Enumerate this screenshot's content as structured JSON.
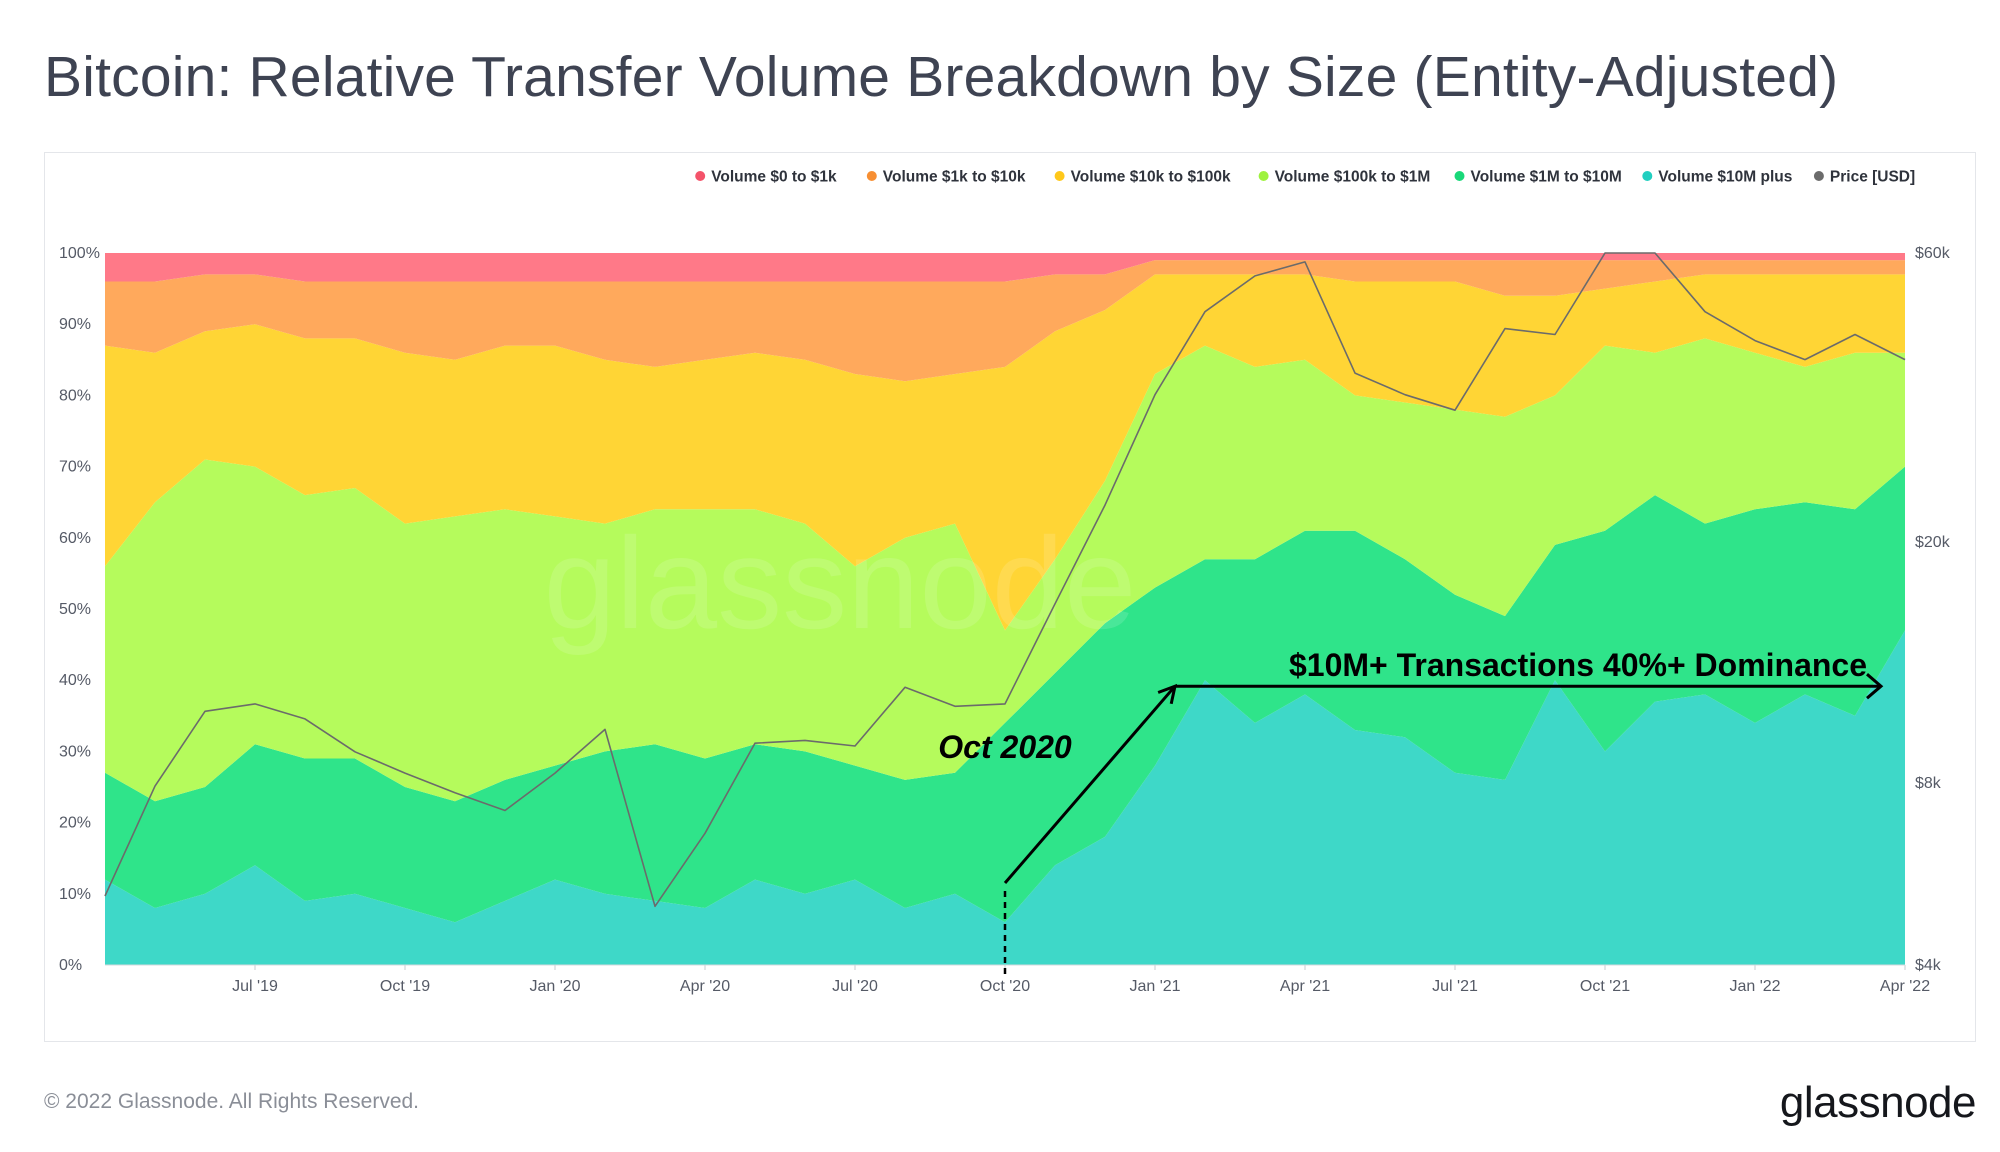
{
  "header": {
    "title": "Bitcoin: Relative Transfer Volume Breakdown by Size (Entity-Adjusted)"
  },
  "footer": {
    "copyright": "© 2022 Glassnode. All Rights Reserved.",
    "brand": "glassnode"
  },
  "watermark": "glassnode",
  "chart_data": {
    "type": "area",
    "stacked": true,
    "normalized": true,
    "title": "Bitcoin: Relative Transfer Volume Breakdown by Size (Entity-Adjusted)",
    "x_ticks": [
      "Jul '19",
      "Oct '19",
      "Jan '20",
      "Apr '20",
      "Jul '20",
      "Oct '20",
      "Jan '21",
      "Apr '21",
      "Jul '21",
      "Oct '21",
      "Jan '22",
      "Apr '22"
    ],
    "y_left": {
      "ticks": [
        "0%",
        "10%",
        "20%",
        "30%",
        "40%",
        "50%",
        "60%",
        "70%",
        "80%",
        "90%",
        "100%"
      ],
      "range": [
        0,
        100
      ]
    },
    "y_right": {
      "ticks": [
        {
          "value": 4000,
          "label": "$4k"
        },
        {
          "value": 8000,
          "label": "$8k"
        },
        {
          "value": 20000,
          "label": "$20k"
        },
        {
          "value": 60000,
          "label": "$60k"
        }
      ],
      "scale": "log",
      "range": [
        4000,
        60000
      ]
    },
    "legend_position": "top-right",
    "dates": [
      "Apr '19",
      "May '19",
      "Jun '19",
      "Jul '19",
      "Aug '19",
      "Sep '19",
      "Oct '19",
      "Nov '19",
      "Dec '19",
      "Jan '20",
      "Feb '20",
      "Mar '20",
      "Apr '20",
      "May '20",
      "Jun '20",
      "Jul '20",
      "Aug '20",
      "Sep '20",
      "Oct '20",
      "Nov '20",
      "Dec '20",
      "Jan '21",
      "Feb '21",
      "Mar '21",
      "Apr '21",
      "May '21",
      "Jun '21",
      "Jul '21",
      "Aug '21",
      "Sep '21",
      "Oct '21",
      "Nov '21",
      "Dec '21",
      "Jan '22",
      "Feb '22",
      "Mar '22",
      "Apr '22"
    ],
    "series": [
      {
        "name": "Volume $10M plus",
        "color": "#3ed8c8",
        "values": [
          12,
          8,
          10,
          14,
          9,
          10,
          8,
          6,
          9,
          12,
          10,
          9,
          8,
          12,
          10,
          12,
          8,
          10,
          6,
          14,
          18,
          28,
          40,
          34,
          38,
          33,
          32,
          27,
          26,
          40,
          30,
          37,
          38,
          34,
          38,
          35,
          47
        ]
      },
      {
        "name": "Volume $1M to $10M",
        "color": "#2fe48a",
        "values": [
          15,
          15,
          15,
          17,
          20,
          19,
          17,
          17,
          17,
          16,
          20,
          22,
          21,
          19,
          20,
          16,
          18,
          17,
          28,
          27,
          30,
          25,
          17,
          23,
          23,
          28,
          25,
          25,
          23,
          19,
          31,
          29,
          24,
          30,
          27,
          29,
          23
        ]
      },
      {
        "name": "Volume $100k to $1M",
        "color": "#b5fb5c",
        "values": [
          29,
          42,
          46,
          39,
          37,
          38,
          37,
          40,
          38,
          35,
          32,
          33,
          35,
          33,
          32,
          28,
          34,
          35,
          13,
          16,
          20,
          30,
          30,
          27,
          24,
          19,
          22,
          26,
          28,
          21,
          26,
          20,
          26,
          22,
          19,
          22,
          16
        ]
      },
      {
        "name": "Volume $10k to $100k",
        "color": "#ffd535",
        "values": [
          31,
          21,
          18,
          20,
          22,
          21,
          24,
          22,
          23,
          24,
          23,
          20,
          21,
          22,
          23,
          27,
          22,
          21,
          37,
          32,
          24,
          14,
          10,
          13,
          12,
          16,
          17,
          18,
          17,
          14,
          8,
          10,
          9,
          11,
          13,
          11,
          11
        ]
      },
      {
        "name": "Volume $1k to $10k",
        "color": "#ffa95c",
        "values": [
          9,
          10,
          8,
          7,
          8,
          8,
          10,
          11,
          9,
          9,
          11,
          12,
          11,
          10,
          11,
          13,
          14,
          13,
          12,
          8,
          5,
          2,
          2,
          2,
          2,
          3,
          3,
          3,
          5,
          5,
          4,
          3,
          2,
          2,
          2,
          2,
          2
        ]
      },
      {
        "name": "Volume $0 to $1k",
        "color": "#ff7988",
        "values": [
          4,
          4,
          3,
          3,
          4,
          4,
          4,
          4,
          4,
          4,
          4,
          4,
          4,
          4,
          4,
          4,
          4,
          4,
          4,
          3,
          3,
          1,
          1,
          1,
          1,
          1,
          1,
          1,
          1,
          1,
          1,
          1,
          1,
          1,
          1,
          1,
          1
        ]
      }
    ],
    "price": {
      "name": "Price [USD]",
      "color": "#6b6b6b",
      "values": [
        5200,
        7900,
        10500,
        10800,
        10200,
        9000,
        8300,
        7700,
        7200,
        8300,
        9800,
        5000,
        6600,
        9300,
        9400,
        9200,
        11500,
        10700,
        10800,
        15800,
        23000,
        35000,
        48000,
        55000,
        58000,
        38000,
        35000,
        33000,
        45000,
        44000,
        60000,
        60000,
        48000,
        43000,
        40000,
        44000,
        40000
      ]
    },
    "legend": [
      "Volume $0 to $1k",
      "Volume $1k to $10k",
      "Volume $10k to $100k",
      "Volume $100k to $1M",
      "Volume $1M to $10M",
      "Volume $10M plus",
      "Price [USD]"
    ],
    "annotations": [
      {
        "text": "Oct 2020",
        "date": "Oct '20"
      },
      {
        "text": "$10M+ Transactions 40%+ Dominance",
        "value_pct": 40,
        "from": "Jan '21",
        "to": "Apr '22"
      }
    ]
  }
}
